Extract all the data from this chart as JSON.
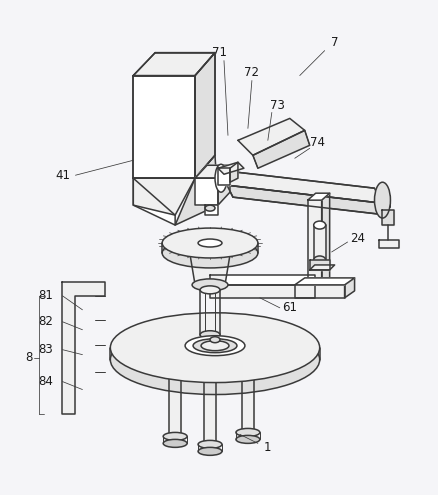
{
  "bg_color": "#f5f5f8",
  "line_color": "#3a3a3a",
  "lw_main": 1.1,
  "lw_thin": 0.7,
  "lw_label": 0.55,
  "fs_label": 8.5,
  "annotation_color": "#1a1a1a",
  "fill_light": "#f0f0f0",
  "fill_mid": "#e0e0e0",
  "fill_dark": "#cccccc",
  "fill_white": "#ffffff",
  "figsize": [
    4.38,
    4.95
  ],
  "dpi": 100
}
